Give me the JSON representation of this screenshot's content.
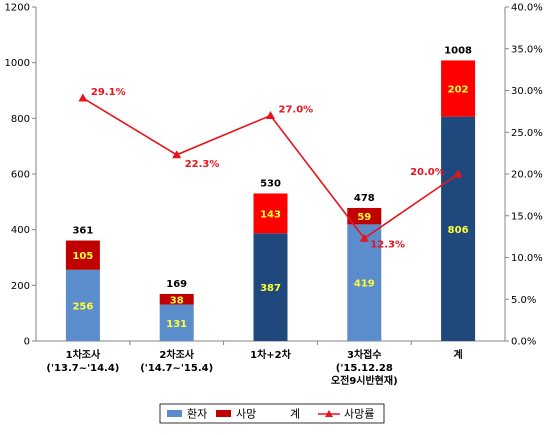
{
  "chart_data": {
    "type": "bar",
    "stacked": true,
    "categories": [
      [
        "1차조사",
        "('13.7~'14.4)"
      ],
      [
        "2차조사",
        "('14.7~'15.4)"
      ],
      [
        "1차+2차"
      ],
      [
        "3차접수",
        "('15.12.28",
        "오전9시반현재)"
      ],
      [
        "계"
      ]
    ],
    "series": [
      {
        "name": "환자",
        "values": [
          256,
          131,
          387,
          419,
          806
        ]
      },
      {
        "name": "사망",
        "values": [
          105,
          38,
          143,
          59,
          202
        ]
      }
    ],
    "totals": {
      "name": "계",
      "values": [
        361,
        169,
        530,
        478,
        1008
      ]
    },
    "line": {
      "name": "사망률",
      "values": [
        29.1,
        22.3,
        27.0,
        12.3,
        20.0
      ],
      "labels": [
        "29.1%",
        "22.3%",
        "27.0%",
        "12.3%",
        "20.0%"
      ]
    },
    "y_left": {
      "min": 0,
      "max": 1200,
      "ticks": [
        "0",
        "200",
        "400",
        "600",
        "800",
        "1000",
        "1200"
      ]
    },
    "y_right": {
      "min": 0,
      "max": 40,
      "ticks": [
        "0.0%",
        "5.0%",
        "10.0%",
        "15.0%",
        "20.0%",
        "25.0%",
        "30.0%",
        "35.0%",
        "40.0%"
      ]
    },
    "legend_position": "bottom",
    "grid": false,
    "colors": {
      "patient_light": "#5b8ccc",
      "patient_dark": "#1f497d",
      "death": "#c00000",
      "death_bright": "#ff0000",
      "line": "#e8141b",
      "label_yellow": "#ffff33"
    }
  }
}
